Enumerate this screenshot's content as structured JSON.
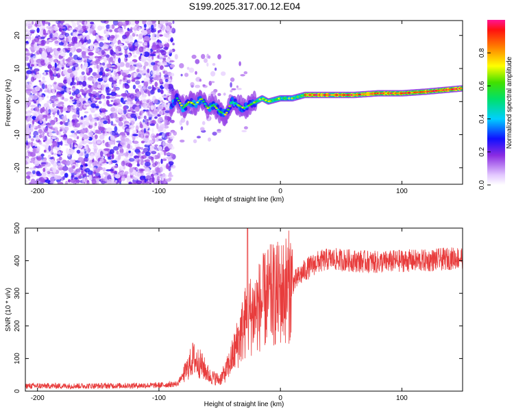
{
  "title": "S199.2025.317.00.12.E04",
  "chart_data": [
    {
      "type": "heatmap",
      "name": "spectrogram",
      "xlabel": "Height of straight line (km)",
      "ylabel": "Frequency (Hz)",
      "xlim": [
        -210,
        150
      ],
      "ylim": [
        -25,
        24.5
      ],
      "xticks": [
        -200,
        -100,
        0,
        100
      ],
      "yticks": [
        -20,
        -10,
        0,
        10,
        20
      ],
      "noise_region_km": [
        -210,
        -88
      ],
      "ridge": [
        {
          "h": -90,
          "f": -1
        },
        {
          "h": -85,
          "f": 1
        },
        {
          "h": -80,
          "f": -2
        },
        {
          "h": -75,
          "f": 0
        },
        {
          "h": -70,
          "f": -1
        },
        {
          "h": -65,
          "f": 1
        },
        {
          "h": -60,
          "f": -2
        },
        {
          "h": -55,
          "f": -1
        },
        {
          "h": -50,
          "f": -3
        },
        {
          "h": -45,
          "f": -4
        },
        {
          "h": -40,
          "f": 0
        },
        {
          "h": -35,
          "f": -1
        },
        {
          "h": -30,
          "f": -2
        },
        {
          "h": -25,
          "f": -1
        },
        {
          "h": -20,
          "f": 0
        },
        {
          "h": -15,
          "f": 1
        },
        {
          "h": -10,
          "f": 0
        },
        {
          "h": 0,
          "f": 1
        },
        {
          "h": 10,
          "f": 1
        },
        {
          "h": 20,
          "f": 2
        },
        {
          "h": 40,
          "f": 2
        },
        {
          "h": 60,
          "f": 2
        },
        {
          "h": 80,
          "f": 2.5
        },
        {
          "h": 100,
          "f": 2.5
        },
        {
          "h": 120,
          "f": 3
        },
        {
          "h": 135,
          "f": 3.5
        },
        {
          "h": 150,
          "f": 4
        }
      ]
    },
    {
      "type": "line",
      "name": "snr",
      "xlabel": "Height of straight line (km)",
      "ylabel": "SNR (10 * v/v)",
      "xlim": [
        -210,
        150
      ],
      "ylim": [
        0,
        500
      ],
      "xticks": [
        -200,
        -100,
        0,
        100
      ],
      "yticks": [
        0,
        100,
        200,
        300,
        400,
        500
      ],
      "color": "#e83c3c",
      "envelope": [
        {
          "x": -210,
          "y": 16
        },
        {
          "x": -150,
          "y": 16
        },
        {
          "x": -100,
          "y": 18
        },
        {
          "x": -85,
          "y": 22
        },
        {
          "x": -78,
          "y": 60
        },
        {
          "x": -72,
          "y": 100
        },
        {
          "x": -65,
          "y": 80
        },
        {
          "x": -58,
          "y": 45
        },
        {
          "x": -50,
          "y": 35
        },
        {
          "x": -45,
          "y": 60
        },
        {
          "x": -40,
          "y": 100
        },
        {
          "x": -35,
          "y": 150
        },
        {
          "x": -28,
          "y": 220
        },
        {
          "x": -20,
          "y": 250
        },
        {
          "x": -10,
          "y": 290
        },
        {
          "x": 0,
          "y": 300
        },
        {
          "x": 10,
          "y": 330
        },
        {
          "x": 20,
          "y": 370
        },
        {
          "x": 30,
          "y": 395
        },
        {
          "x": 40,
          "y": 405
        },
        {
          "x": 60,
          "y": 400
        },
        {
          "x": 80,
          "y": 395
        },
        {
          "x": 100,
          "y": 400
        },
        {
          "x": 120,
          "y": 400
        },
        {
          "x": 150,
          "y": 410
        }
      ],
      "spike": {
        "x": -27,
        "y": 500
      }
    }
  ],
  "colorbar": {
    "label": "Normalized spectral amplitude",
    "ticks": [
      "0.0",
      "0.2",
      "0.4",
      "0.6",
      "0.8"
    ],
    "range": [
      0,
      1
    ]
  }
}
